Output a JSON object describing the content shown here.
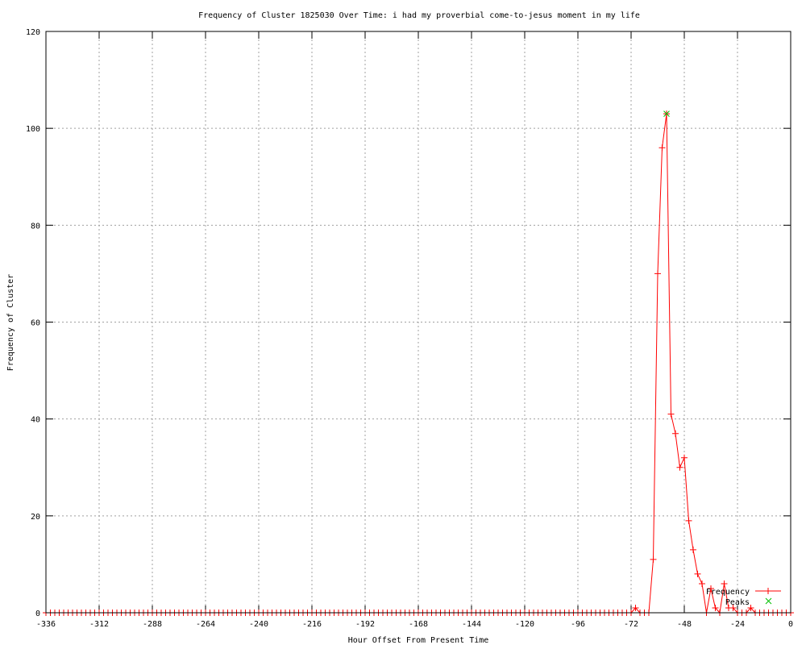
{
  "chart_data": {
    "type": "line",
    "title": "Frequency of Cluster 1825030 Over Time: i had my proverbial come-to-jesus moment in my life",
    "xlabel": "Hour Offset From Present Time",
    "ylabel": "Frequency of Cluster",
    "xlim": [
      -336,
      0
    ],
    "ylim": [
      0,
      120
    ],
    "xticks": [
      -336,
      -312,
      -288,
      -264,
      -240,
      -216,
      -192,
      -168,
      -144,
      -120,
      -96,
      -72,
      -48,
      -24,
      0
    ],
    "yticks": [
      0,
      20,
      40,
      60,
      80,
      100,
      120
    ],
    "grid": true,
    "legend_position": "bottom-right",
    "series": [
      {
        "name": "Frequency",
        "color": "#ff0000",
        "marker": "plus",
        "x": [
          -336,
          -334,
          -332,
          -330,
          -328,
          -326,
          -324,
          -322,
          -320,
          -318,
          -316,
          -314,
          -312,
          -310,
          -308,
          -306,
          -304,
          -302,
          -300,
          -298,
          -296,
          -294,
          -292,
          -290,
          -288,
          -286,
          -284,
          -282,
          -280,
          -278,
          -276,
          -274,
          -272,
          -270,
          -268,
          -266,
          -264,
          -262,
          -260,
          -258,
          -256,
          -254,
          -252,
          -250,
          -248,
          -246,
          -244,
          -242,
          -240,
          -238,
          -236,
          -234,
          -232,
          -230,
          -228,
          -226,
          -224,
          -222,
          -220,
          -218,
          -216,
          -214,
          -212,
          -210,
          -208,
          -206,
          -204,
          -202,
          -200,
          -198,
          -196,
          -194,
          -192,
          -190,
          -188,
          -186,
          -184,
          -182,
          -180,
          -178,
          -176,
          -174,
          -172,
          -170,
          -168,
          -166,
          -164,
          -162,
          -160,
          -158,
          -156,
          -154,
          -152,
          -150,
          -148,
          -146,
          -144,
          -142,
          -140,
          -138,
          -136,
          -134,
          -132,
          -130,
          -128,
          -126,
          -124,
          -122,
          -120,
          -118,
          -116,
          -114,
          -112,
          -110,
          -108,
          -106,
          -104,
          -102,
          -100,
          -98,
          -96,
          -94,
          -92,
          -90,
          -88,
          -86,
          -84,
          -82,
          -80,
          -78,
          -76,
          -74,
          -72,
          -70,
          -68,
          -66,
          -64,
          -62,
          -60,
          -58,
          -56,
          -54,
          -52,
          -50,
          -48,
          -46,
          -44,
          -42,
          -40,
          -38,
          -36,
          -34,
          -32,
          -30,
          -28,
          -26,
          -24,
          -22,
          -20,
          -18,
          -16,
          -14,
          -12,
          -10,
          -8,
          -6,
          -4,
          -2,
          0
        ],
        "y": [
          0,
          0,
          0,
          0,
          0,
          0,
          0,
          0,
          0,
          0,
          0,
          0,
          0,
          0,
          0,
          0,
          0,
          0,
          0,
          0,
          0,
          0,
          0,
          0,
          0,
          0,
          0,
          0,
          0,
          0,
          0,
          0,
          0,
          0,
          0,
          0,
          0,
          0,
          0,
          0,
          0,
          0,
          0,
          0,
          0,
          0,
          0,
          0,
          0,
          0,
          0,
          0,
          0,
          0,
          0,
          0,
          0,
          0,
          0,
          0,
          0,
          0,
          0,
          0,
          0,
          0,
          0,
          0,
          0,
          0,
          0,
          0,
          0,
          0,
          0,
          0,
          0,
          0,
          0,
          0,
          0,
          0,
          0,
          0,
          0,
          0,
          0,
          0,
          0,
          0,
          0,
          0,
          0,
          0,
          0,
          0,
          0,
          0,
          0,
          0,
          0,
          0,
          0,
          0,
          0,
          0,
          0,
          0,
          0,
          0,
          0,
          0,
          0,
          0,
          0,
          0,
          0,
          0,
          0,
          0,
          0,
          0,
          0,
          0,
          0,
          0,
          0,
          0,
          0,
          0,
          0,
          0,
          0,
          1,
          0,
          0,
          0,
          11,
          70,
          96,
          103,
          41,
          37,
          30,
          32,
          19,
          13,
          8,
          6,
          0,
          5,
          1,
          0,
          6,
          1,
          1,
          0,
          0,
          0,
          1,
          0,
          0,
          0,
          0,
          0,
          0,
          0,
          0,
          0
        ]
      },
      {
        "name": "Peaks",
        "color": "#00c000",
        "marker": "x",
        "x": [
          -56
        ],
        "y": [
          103
        ]
      }
    ]
  }
}
